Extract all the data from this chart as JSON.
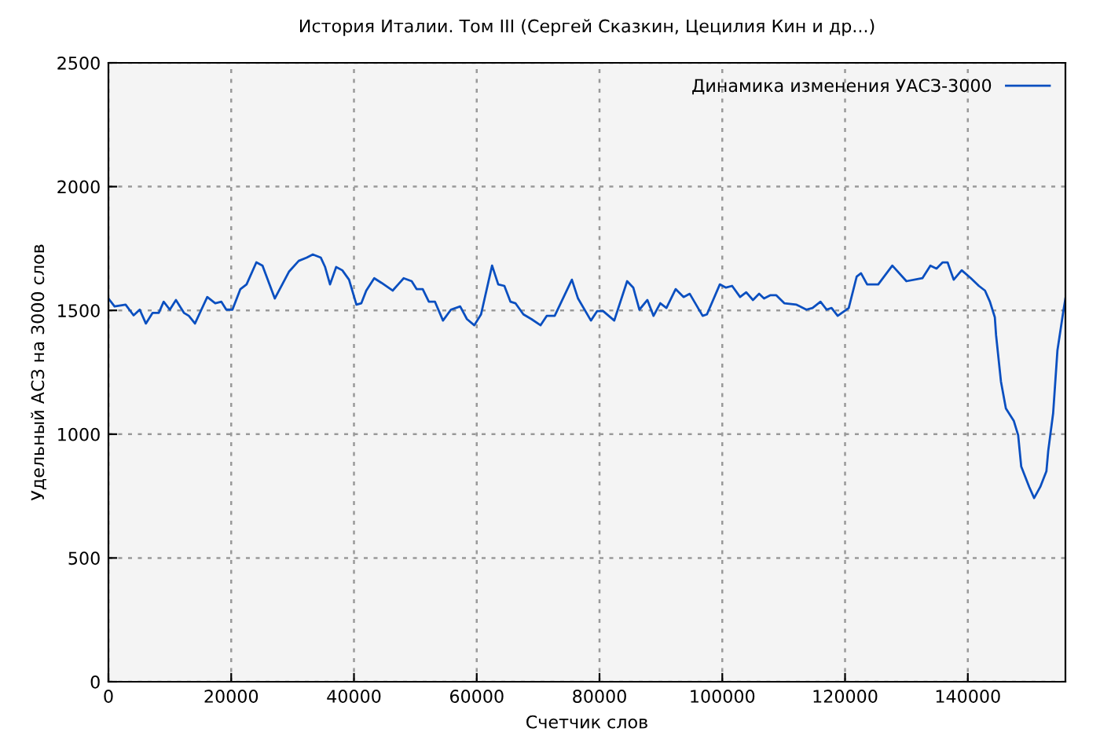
{
  "chart_data": {
    "type": "line",
    "title": "История Италии. Том III (Сергей Сказкин, Цецилия Кин и др...)",
    "xlabel": "Счетчик слов",
    "ylabel": "Удельный АСЗ на 3000 слов",
    "x": [
      0,
      1000,
      2800,
      4100,
      5100,
      6100,
      7200,
      8200,
      9000,
      10000,
      11000,
      12300,
      13100,
      14100,
      16100,
      17400,
      18400,
      19200,
      20200,
      21500,
      22500,
      24100,
      25100,
      27100,
      29400,
      31000,
      32300,
      33300,
      34600,
      35300,
      36100,
      37100,
      38100,
      39200,
      40400,
      41200,
      42000,
      43300,
      44500,
      46300,
      48100,
      49400,
      50200,
      51200,
      52200,
      53200,
      54500,
      55800,
      57300,
      58400,
      59600,
      60700,
      62500,
      63500,
      64500,
      65500,
      66300,
      67600,
      68900,
      70400,
      71400,
      72700,
      75500,
      76500,
      78600,
      79600,
      80600,
      82400,
      84500,
      85500,
      86500,
      87800,
      88800,
      89900,
      90900,
      92400,
      93700,
      94700,
      96800,
      97500,
      99600,
      100600,
      101600,
      102900,
      103900,
      105000,
      106000,
      106800,
      107800,
      108800,
      110100,
      112100,
      113700,
      114700,
      116000,
      117000,
      117800,
      118800,
      120600,
      121900,
      122600,
      123600,
      125400,
      127700,
      130000,
      132600,
      133900,
      134900,
      135900,
      136700,
      137700,
      139000,
      140500,
      141800,
      142800,
      143600,
      144400,
      144600,
      145400,
      146200,
      147500,
      148200,
      148700,
      150000,
      150800,
      151800,
      152800,
      153100,
      153900,
      154600,
      155600,
      155900
    ],
    "series": [
      {
        "name": "Динамика изменения УАСЗ-3000",
        "color": "#0a4fc0",
        "values": [
          1548,
          1516,
          1523,
          1480,
          1503,
          1447,
          1490,
          1490,
          1535,
          1503,
          1542,
          1490,
          1478,
          1447,
          1554,
          1529,
          1535,
          1503,
          1503,
          1586,
          1605,
          1694,
          1681,
          1548,
          1656,
          1700,
          1713,
          1726,
          1713,
          1675,
          1605,
          1675,
          1662,
          1624,
          1523,
          1529,
          1580,
          1630,
          1611,
          1580,
          1630,
          1618,
          1586,
          1586,
          1535,
          1535,
          1459,
          1503,
          1516,
          1465,
          1440,
          1484,
          1681,
          1605,
          1599,
          1535,
          1529,
          1484,
          1465,
          1440,
          1478,
          1478,
          1624,
          1548,
          1459,
          1497,
          1497,
          1459,
          1618,
          1592,
          1503,
          1542,
          1478,
          1529,
          1510,
          1586,
          1554,
          1567,
          1478,
          1484,
          1605,
          1592,
          1599,
          1554,
          1573,
          1542,
          1567,
          1548,
          1561,
          1561,
          1529,
          1523,
          1503,
          1510,
          1535,
          1503,
          1510,
          1478,
          1510,
          1637,
          1650,
          1605,
          1605,
          1681,
          1618,
          1630,
          1681,
          1669,
          1694,
          1694,
          1624,
          1662,
          1630,
          1599,
          1580,
          1535,
          1472,
          1400,
          1212,
          1104,
          1053,
          996,
          869,
          787,
          742,
          787,
          850,
          933,
          1085,
          1339,
          1503,
          1548
        ]
      }
    ],
    "xlim": [
      0,
      155900
    ],
    "ylim": [
      0,
      2500
    ],
    "xticks": [
      0,
      20000,
      40000,
      60000,
      80000,
      100000,
      120000,
      140000
    ],
    "yticks": [
      0,
      500,
      1000,
      1500,
      2000,
      2500
    ],
    "grid": true,
    "legend": "top right",
    "marker": "none",
    "line_style": "solid"
  }
}
